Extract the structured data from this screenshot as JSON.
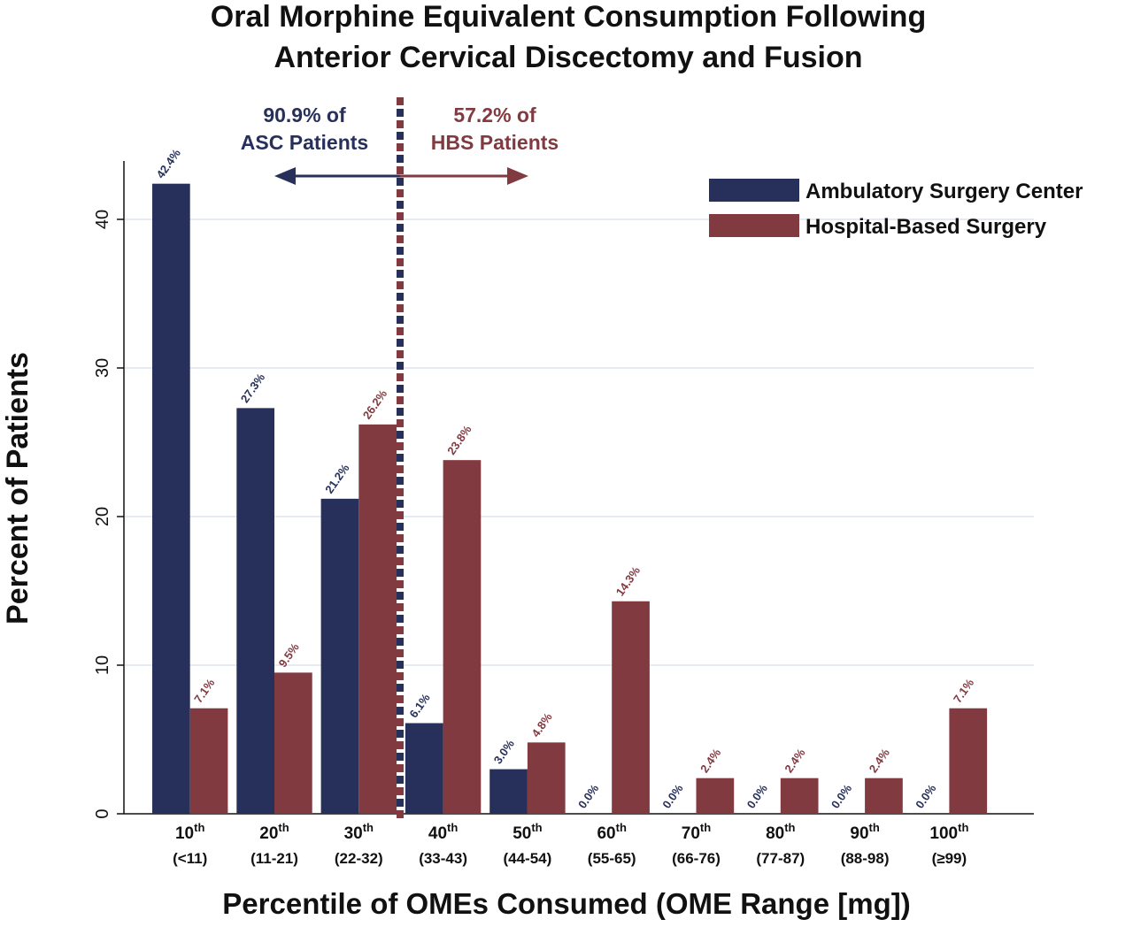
{
  "colors": {
    "asc": "#27305a",
    "hbs": "#823a41",
    "grid": "#dde3ee"
  },
  "title_lines": [
    "Oral Morphine Equivalent Consumption Following",
    "Anterior Cervical Discectomy and Fusion"
  ],
  "chart_data": {
    "type": "bar",
    "title": "Oral Morphine Equivalent Consumption Following Anterior Cervical Discectomy and Fusion",
    "xlabel": "Percentile of OMEs Consumed (OME Range [mg])",
    "ylabel": "Percent of Patients",
    "ylim": [
      0,
      44
    ],
    "yticks": [
      0,
      10,
      20,
      30,
      40
    ],
    "grid": true,
    "legend_position": "top-right",
    "categories": [
      {
        "pct": "10",
        "sup": "th",
        "range": "(<11)"
      },
      {
        "pct": "20",
        "sup": "th",
        "range": "(11-21)"
      },
      {
        "pct": "30",
        "sup": "th",
        "range": "(22-32)"
      },
      {
        "pct": "40",
        "sup": "th",
        "range": "(33-43)"
      },
      {
        "pct": "50",
        "sup": "th",
        "range": "(44-54)"
      },
      {
        "pct": "60",
        "sup": "th",
        "range": "(55-65)"
      },
      {
        "pct": "70",
        "sup": "th",
        "range": "(66-76)"
      },
      {
        "pct": "80",
        "sup": "th",
        "range": "(77-87)"
      },
      {
        "pct": "90",
        "sup": "th",
        "range": "(88-98)"
      },
      {
        "pct": "100",
        "sup": "th",
        "range": "(≥99)"
      }
    ],
    "series": [
      {
        "name": "Ambulatory Surgery Center",
        "color": "#27305a",
        "values": [
          42.4,
          27.3,
          21.2,
          6.1,
          3.0,
          0.0,
          0.0,
          0.0,
          0.0,
          0.0
        ],
        "labels": [
          "42.4%",
          "27.3%",
          "21.2%",
          "6.1%",
          "3.0%",
          "0.0%",
          "0.0%",
          "0.0%",
          "0.0%",
          "0.0%"
        ]
      },
      {
        "name": "Hospital-Based Surgery",
        "color": "#823a41",
        "values": [
          7.1,
          9.5,
          26.2,
          23.8,
          4.8,
          14.3,
          2.4,
          2.4,
          2.4,
          7.1
        ],
        "labels": [
          "7.1%",
          "9.5%",
          "26.2%",
          "23.8%",
          "4.8%",
          "14.3%",
          "2.4%",
          "2.4%",
          "2.4%",
          "7.1%"
        ]
      }
    ],
    "annotations": {
      "asc": {
        "line1": "90.9% of",
        "line2": "ASC Patients",
        "direction": "left"
      },
      "hbs": {
        "line1": "57.2% of",
        "line2": "HBS Patients",
        "direction": "right"
      }
    }
  }
}
